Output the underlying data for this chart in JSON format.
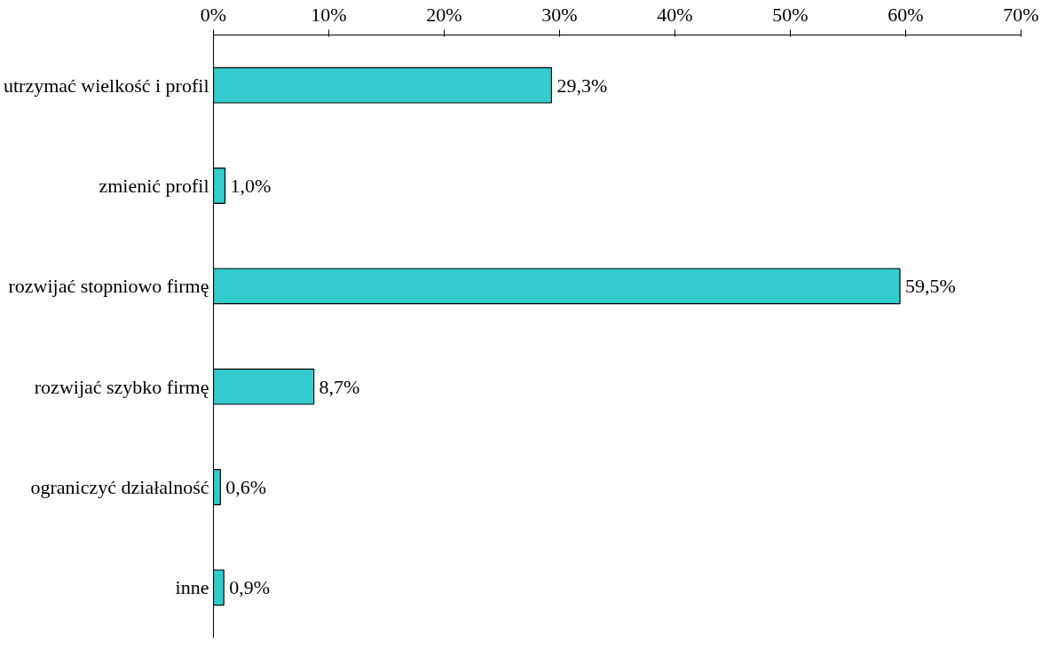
{
  "chart_data": {
    "type": "bar",
    "orientation": "horizontal",
    "categories": [
      "utrzymać wielkość i profil",
      "zmienić profil",
      "rozwijać stopniowo firmę",
      "rozwijać szybko firmę",
      "ograniczyć działalność",
      "inne"
    ],
    "values": [
      29.3,
      1.0,
      59.5,
      8.7,
      0.6,
      0.9
    ],
    "value_labels": [
      "29,3%",
      "1,0%",
      "59,5%",
      "8,7%",
      "0,6%",
      "0,9%"
    ],
    "color": "#33cccc",
    "xlim": [
      0,
      70
    ],
    "xticks": [
      {
        "value": 0,
        "label": "0%"
      },
      {
        "value": 10,
        "label": "10%"
      },
      {
        "value": 20,
        "label": "20%"
      },
      {
        "value": 30,
        "label": "30%"
      },
      {
        "value": 40,
        "label": "40%"
      },
      {
        "value": 50,
        "label": "50%"
      },
      {
        "value": 60,
        "label": "60%"
      },
      {
        "value": 70,
        "label": "70%"
      }
    ],
    "grid": false
  }
}
